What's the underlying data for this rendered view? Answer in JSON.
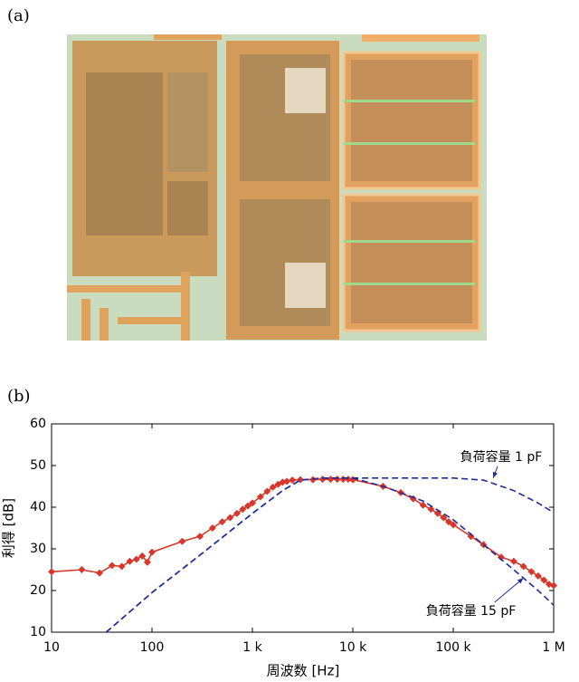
{
  "panel_labels": [
    "(a)",
    "(b)"
  ],
  "chart_data": {
    "type": "line",
    "x_label": "周波数 [Hz]",
    "y_label": "利得 [dB]",
    "xscale": "log",
    "xlim": [
      10,
      1000000
    ],
    "ylim": [
      10,
      60
    ],
    "xticks": [
      10,
      100,
      {
        "value": 1000,
        "label": "1 k"
      },
      {
        "value": 10000,
        "label": "10 k"
      },
      {
        "value": 100000,
        "label": "100 k"
      },
      {
        "value": 1000000,
        "label": "1 M"
      }
    ],
    "yticks": [
      10,
      20,
      30,
      40,
      50,
      60
    ],
    "grid": false,
    "series": [
      {
        "color": "#d7382b",
        "style": "solid",
        "marker": "diamond",
        "x": [
          10,
          20,
          30,
          40,
          50,
          60,
          70,
          80,
          90,
          100,
          200,
          300,
          400,
          500,
          600,
          700,
          800,
          900,
          1000,
          1200,
          1400,
          1600,
          1800,
          2000,
          2200,
          2500,
          3000,
          4000,
          5000,
          6000,
          7000,
          8000,
          9000,
          10000,
          20000,
          30000,
          40000,
          50000,
          60000,
          70000,
          80000,
          90000,
          100000,
          150000,
          200000,
          300000,
          400000,
          500000,
          600000,
          700000,
          800000,
          900000,
          1000000
        ],
        "values": [
          24.5,
          25,
          24.2,
          26,
          25.8,
          27,
          27.5,
          28.3,
          26.8,
          29.2,
          31.8,
          33,
          35,
          36.5,
          37.5,
          38.5,
          39.5,
          40.3,
          41,
          42.5,
          43.8,
          44.8,
          45.5,
          46,
          46.2,
          46.5,
          46.6,
          46.6,
          46.7,
          46.7,
          46.7,
          46.7,
          46.7,
          46.6,
          45,
          43.5,
          42,
          40.5,
          39.5,
          38.5,
          37.5,
          36.5,
          35.8,
          33,
          31,
          28,
          27,
          25.8,
          24.5,
          23.5,
          22.5,
          21.5,
          21.2
        ]
      },
      {
        "color": "#1f2c9c",
        "style": "dashed",
        "x": [
          35,
          100,
          300,
          1000,
          2000,
          3000,
          5000,
          10000,
          30000,
          100000,
          200000,
          400000,
          700000,
          1000000
        ],
        "values": [
          10,
          19.5,
          28.5,
          38.5,
          44,
          46.5,
          47,
          47,
          47,
          47,
          46.5,
          44,
          41,
          38.7
        ]
      },
      {
        "color": "#1f2c9c",
        "style": "dashed",
        "x": [
          35,
          100,
          300,
          1000,
          2000,
          3000,
          5000,
          10000,
          20000,
          50000,
          100000,
          200000,
          400000,
          700000,
          1000000
        ],
        "values": [
          10,
          19.5,
          28.5,
          38.5,
          44,
          46.5,
          47,
          47,
          45,
          41.5,
          37,
          31,
          25,
          20,
          16.5
        ]
      }
    ],
    "annotations": [
      {
        "text": "負荷容量 1 pF",
        "x": 300000,
        "y": 52,
        "arrow_to": [
          250000,
          47
        ]
      },
      {
        "text": "負荷容量 15 pF",
        "x": 150000,
        "y": 15,
        "arrow_to": [
          500000,
          23
        ]
      }
    ]
  }
}
